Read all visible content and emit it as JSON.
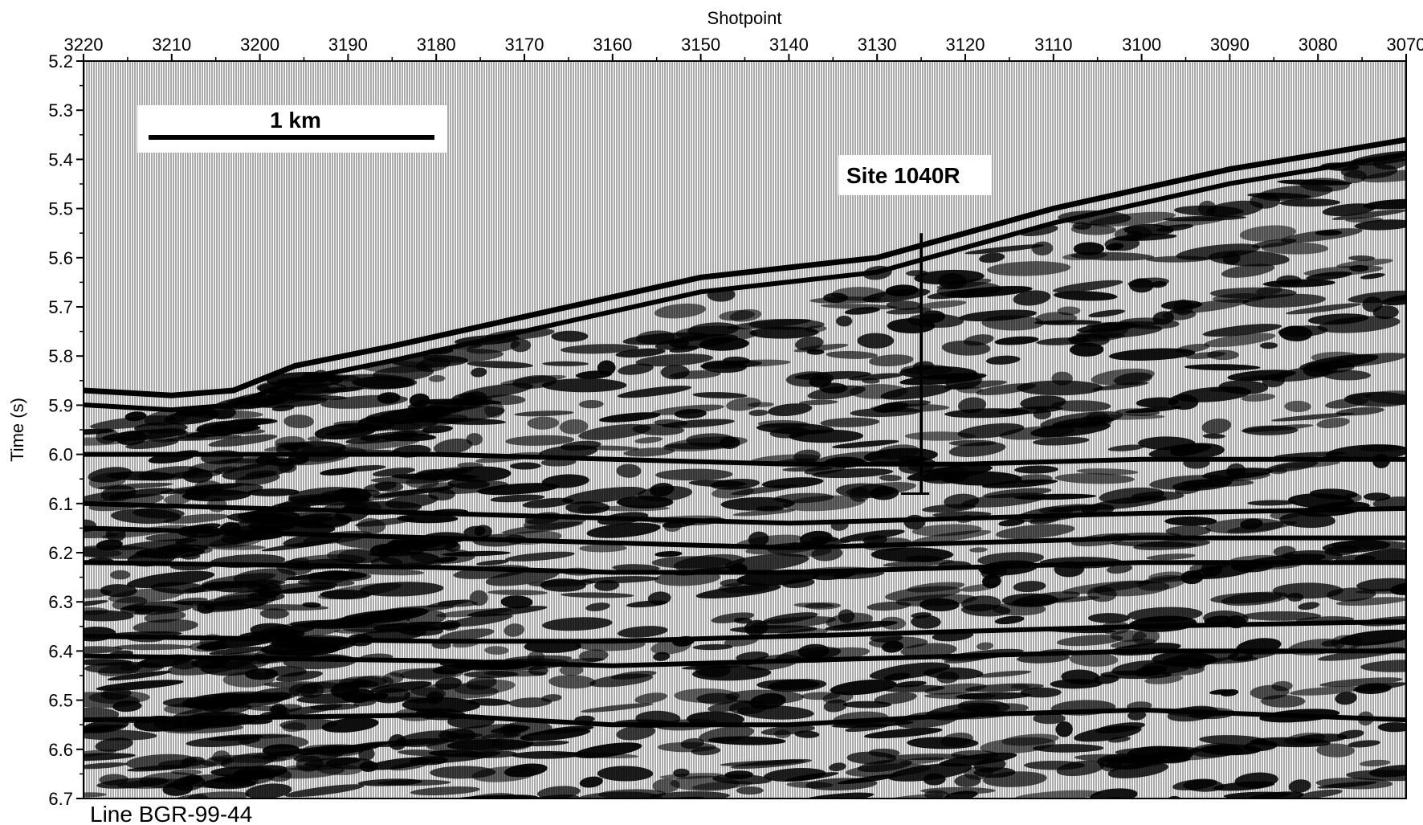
{
  "figure": {
    "line_label": "Line BGR-99-44",
    "scale_bar_label": "1 km",
    "site_label": "Site 1040R"
  },
  "chart_data": {
    "type": "heatmap",
    "subtype": "seismic reflection profile (wiggle-trace variable area)",
    "xlabel": "Shotpoint",
    "ylabel": "Time (s)",
    "x_axis_position": "top",
    "x_reversed": true,
    "xlim": [
      3220,
      3070
    ],
    "ylim": [
      5.2,
      6.7
    ],
    "x_ticks": [
      3220,
      3210,
      3200,
      3190,
      3180,
      3170,
      3160,
      3150,
      3140,
      3130,
      3120,
      3110,
      3100,
      3090,
      3080,
      3070
    ],
    "y_ticks": [
      "5.2",
      "5.3",
      "5.4",
      "5.5",
      "5.6",
      "5.7",
      "5.8",
      "5.9",
      "6.0",
      "6.1",
      "6.2",
      "6.3",
      "6.4",
      "6.5",
      "6.6",
      "6.7"
    ],
    "seafloor": {
      "shotpoint": [
        3220,
        3210,
        3203,
        3196,
        3185,
        3175,
        3165,
        3150,
        3140,
        3130,
        3120,
        3110,
        3100,
        3090,
        3080,
        3070
      ],
      "time": [
        5.87,
        5.88,
        5.87,
        5.82,
        5.78,
        5.74,
        5.7,
        5.64,
        5.62,
        5.6,
        5.55,
        5.5,
        5.46,
        5.42,
        5.39,
        5.36
      ]
    },
    "reflectors": [
      {
        "shotpoint": [
          3220,
          3180,
          3160,
          3140,
          3120,
          3100,
          3070
        ],
        "time": [
          6.0,
          6.0,
          6.01,
          6.02,
          6.02,
          6.01,
          6.01
        ]
      },
      {
        "shotpoint": [
          3220,
          3180,
          3160,
          3140,
          3120,
          3100,
          3070
        ],
        "time": [
          6.1,
          6.12,
          6.13,
          6.14,
          6.13,
          6.12,
          6.11
        ]
      },
      {
        "shotpoint": [
          3220,
          3180,
          3160,
          3140,
          3120,
          3100,
          3070
        ],
        "time": [
          6.15,
          6.17,
          6.18,
          6.19,
          6.18,
          6.17,
          6.17
        ]
      },
      {
        "shotpoint": [
          3220,
          3180,
          3160,
          3140,
          3120,
          3100,
          3070
        ],
        "time": [
          6.22,
          6.23,
          6.24,
          6.24,
          6.23,
          6.22,
          6.22
        ]
      },
      {
        "shotpoint": [
          3220,
          3180,
          3160,
          3140,
          3120,
          3100,
          3070
        ],
        "time": [
          6.37,
          6.38,
          6.38,
          6.37,
          6.36,
          6.35,
          6.34
        ]
      },
      {
        "shotpoint": [
          3220,
          3180,
          3160,
          3140,
          3120,
          3100,
          3070
        ],
        "time": [
          6.41,
          6.42,
          6.43,
          6.42,
          6.41,
          6.4,
          6.4
        ]
      },
      {
        "shotpoint": [
          3220,
          3180,
          3160,
          3140,
          3120,
          3100,
          3070
        ],
        "time": [
          6.54,
          6.53,
          6.55,
          6.55,
          6.53,
          6.52,
          6.54
        ]
      }
    ],
    "site": {
      "shotpoint": 3125,
      "time_top": 5.55,
      "time_bottom": 6.08
    },
    "grid": false
  }
}
